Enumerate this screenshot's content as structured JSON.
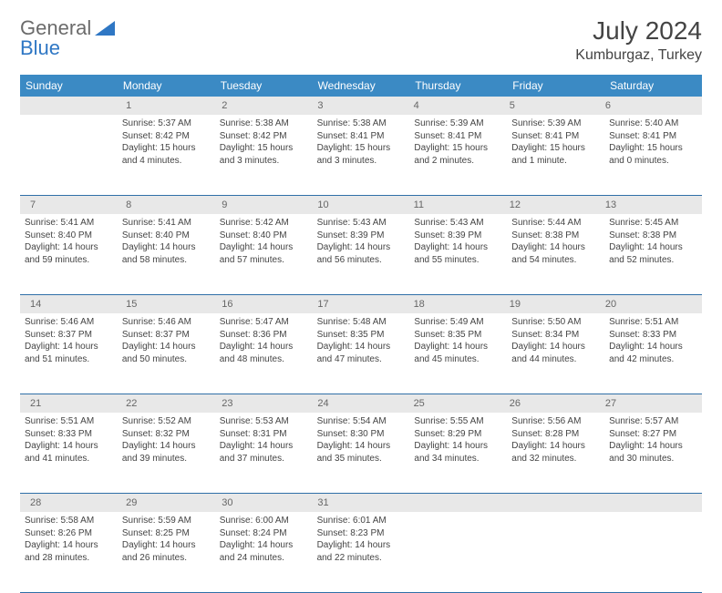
{
  "logo": {
    "word1": "General",
    "word2": "Blue",
    "gray": "#6b6b6b",
    "blue": "#2f77c4"
  },
  "title": "July 2024",
  "location": "Kumburgaz, Turkey",
  "header_bg": "#3b8ac4",
  "header_text": "#ffffff",
  "daynum_bg": "#e8e8e8",
  "rule_color": "#2f6fa8",
  "weekdays": [
    "Sunday",
    "Monday",
    "Tuesday",
    "Wednesday",
    "Thursday",
    "Friday",
    "Saturday"
  ],
  "weeks": [
    {
      "nums": [
        "",
        "1",
        "2",
        "3",
        "4",
        "5",
        "6"
      ],
      "cells": [
        null,
        {
          "sunrise": "5:37 AM",
          "sunset": "8:42 PM",
          "daylight": "15 hours and 4 minutes."
        },
        {
          "sunrise": "5:38 AM",
          "sunset": "8:42 PM",
          "daylight": "15 hours and 3 minutes."
        },
        {
          "sunrise": "5:38 AM",
          "sunset": "8:41 PM",
          "daylight": "15 hours and 3 minutes."
        },
        {
          "sunrise": "5:39 AM",
          "sunset": "8:41 PM",
          "daylight": "15 hours and 2 minutes."
        },
        {
          "sunrise": "5:39 AM",
          "sunset": "8:41 PM",
          "daylight": "15 hours and 1 minute."
        },
        {
          "sunrise": "5:40 AM",
          "sunset": "8:41 PM",
          "daylight": "15 hours and 0 minutes."
        }
      ]
    },
    {
      "nums": [
        "7",
        "8",
        "9",
        "10",
        "11",
        "12",
        "13"
      ],
      "cells": [
        {
          "sunrise": "5:41 AM",
          "sunset": "8:40 PM",
          "daylight": "14 hours and 59 minutes."
        },
        {
          "sunrise": "5:41 AM",
          "sunset": "8:40 PM",
          "daylight": "14 hours and 58 minutes."
        },
        {
          "sunrise": "5:42 AM",
          "sunset": "8:40 PM",
          "daylight": "14 hours and 57 minutes."
        },
        {
          "sunrise": "5:43 AM",
          "sunset": "8:39 PM",
          "daylight": "14 hours and 56 minutes."
        },
        {
          "sunrise": "5:43 AM",
          "sunset": "8:39 PM",
          "daylight": "14 hours and 55 minutes."
        },
        {
          "sunrise": "5:44 AM",
          "sunset": "8:38 PM",
          "daylight": "14 hours and 54 minutes."
        },
        {
          "sunrise": "5:45 AM",
          "sunset": "8:38 PM",
          "daylight": "14 hours and 52 minutes."
        }
      ]
    },
    {
      "nums": [
        "14",
        "15",
        "16",
        "17",
        "18",
        "19",
        "20"
      ],
      "cells": [
        {
          "sunrise": "5:46 AM",
          "sunset": "8:37 PM",
          "daylight": "14 hours and 51 minutes."
        },
        {
          "sunrise": "5:46 AM",
          "sunset": "8:37 PM",
          "daylight": "14 hours and 50 minutes."
        },
        {
          "sunrise": "5:47 AM",
          "sunset": "8:36 PM",
          "daylight": "14 hours and 48 minutes."
        },
        {
          "sunrise": "5:48 AM",
          "sunset": "8:35 PM",
          "daylight": "14 hours and 47 minutes."
        },
        {
          "sunrise": "5:49 AM",
          "sunset": "8:35 PM",
          "daylight": "14 hours and 45 minutes."
        },
        {
          "sunrise": "5:50 AM",
          "sunset": "8:34 PM",
          "daylight": "14 hours and 44 minutes."
        },
        {
          "sunrise": "5:51 AM",
          "sunset": "8:33 PM",
          "daylight": "14 hours and 42 minutes."
        }
      ]
    },
    {
      "nums": [
        "21",
        "22",
        "23",
        "24",
        "25",
        "26",
        "27"
      ],
      "cells": [
        {
          "sunrise": "5:51 AM",
          "sunset": "8:33 PM",
          "daylight": "14 hours and 41 minutes."
        },
        {
          "sunrise": "5:52 AM",
          "sunset": "8:32 PM",
          "daylight": "14 hours and 39 minutes."
        },
        {
          "sunrise": "5:53 AM",
          "sunset": "8:31 PM",
          "daylight": "14 hours and 37 minutes."
        },
        {
          "sunrise": "5:54 AM",
          "sunset": "8:30 PM",
          "daylight": "14 hours and 35 minutes."
        },
        {
          "sunrise": "5:55 AM",
          "sunset": "8:29 PM",
          "daylight": "14 hours and 34 minutes."
        },
        {
          "sunrise": "5:56 AM",
          "sunset": "8:28 PM",
          "daylight": "14 hours and 32 minutes."
        },
        {
          "sunrise": "5:57 AM",
          "sunset": "8:27 PM",
          "daylight": "14 hours and 30 minutes."
        }
      ]
    },
    {
      "nums": [
        "28",
        "29",
        "30",
        "31",
        "",
        "",
        ""
      ],
      "cells": [
        {
          "sunrise": "5:58 AM",
          "sunset": "8:26 PM",
          "daylight": "14 hours and 28 minutes."
        },
        {
          "sunrise": "5:59 AM",
          "sunset": "8:25 PM",
          "daylight": "14 hours and 26 minutes."
        },
        {
          "sunrise": "6:00 AM",
          "sunset": "8:24 PM",
          "daylight": "14 hours and 24 minutes."
        },
        {
          "sunrise": "6:01 AM",
          "sunset": "8:23 PM",
          "daylight": "14 hours and 22 minutes."
        },
        null,
        null,
        null
      ]
    }
  ],
  "labels": {
    "sunrise": "Sunrise:",
    "sunset": "Sunset:",
    "daylight": "Daylight:"
  }
}
